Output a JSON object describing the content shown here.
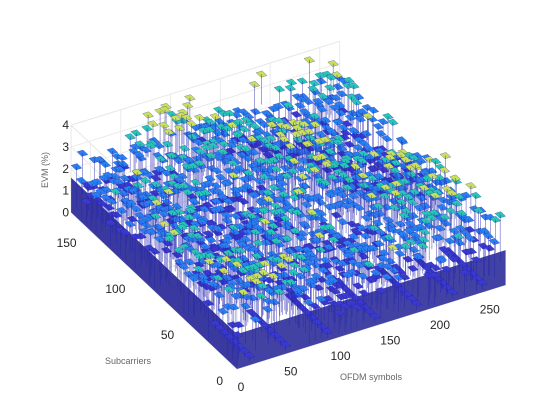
{
  "chart_data": {
    "type": "surface3d",
    "zlabel": "EVM (%)",
    "ylabel": "Subcarriers",
    "xlabel": "OFDM symbols",
    "x_ticks": [
      "0",
      "50",
      "100",
      "150",
      "200",
      "250"
    ],
    "y_ticks": [
      "0",
      "50",
      "100",
      "150"
    ],
    "z_ticks": [
      "0",
      "1",
      "2",
      "3",
      "4"
    ],
    "xlim": [
      0,
      270
    ],
    "ylim": [
      0,
      170
    ],
    "zlim": [
      0,
      4
    ],
    "grid": true,
    "colormap": "parula",
    "colors": {
      "low": "#3a3ad0",
      "mid": "#2a7ff0",
      "high": "#28c4b8",
      "peak": "#c8e05a",
      "side": "#2e2e9a"
    },
    "surface_grid": {
      "symbols": 270,
      "subcarriers": 170
    },
    "evm_stats": {
      "typical_min": 1.0,
      "typical_max": 3.2,
      "peak_max": 3.9
    },
    "notched_symbol_blocks": [
      10,
      45,
      90,
      135,
      175,
      215,
      245
    ]
  }
}
